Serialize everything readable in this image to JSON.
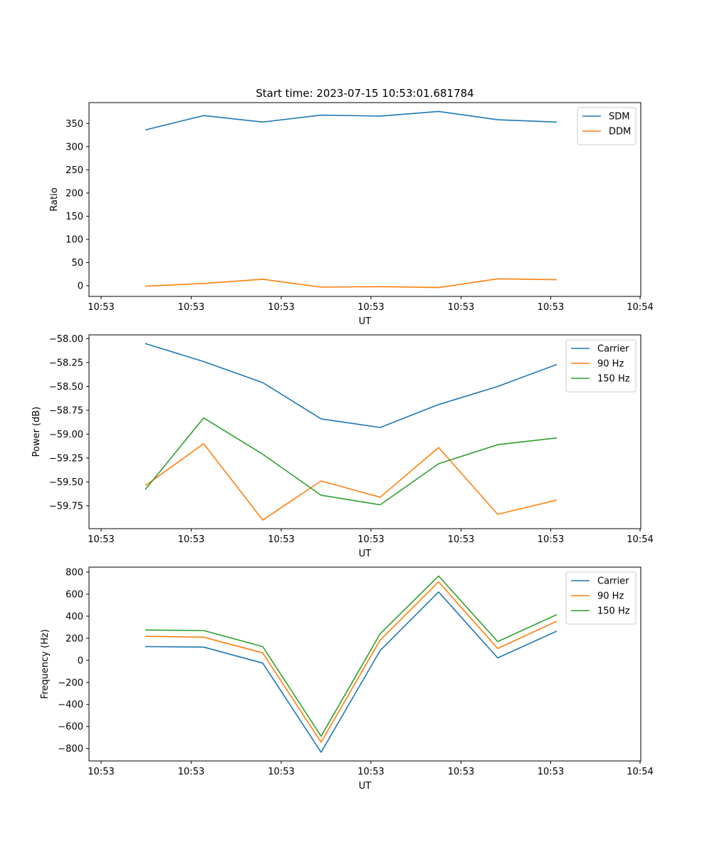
{
  "chart_data": [
    {
      "type": "line",
      "title": "Start time: 2023-07-15 10:53:01.681784",
      "xlabel": "UT",
      "ylabel": "Ratio",
      "x_tick_labels": [
        "10:53",
        "10:53",
        "10:53",
        "10:53",
        "10:53",
        "10:53",
        "10:54"
      ],
      "ylim": [
        -23,
        395
      ],
      "y_ticks": [
        0,
        50,
        100,
        150,
        200,
        250,
        300,
        350
      ],
      "legend_position": "top-right",
      "series": [
        {
          "name": "SDM",
          "color": "#1f77b4",
          "values": [
            336,
            367,
            353,
            368,
            366,
            376,
            358,
            353
          ]
        },
        {
          "name": "DDM",
          "color": "#ff7f0e",
          "values": [
            -1,
            5,
            14,
            -3,
            -2,
            -4,
            15,
            13
          ]
        }
      ]
    },
    {
      "type": "line",
      "title": "",
      "xlabel": "UT",
      "ylabel": "Power (dB)",
      "x_tick_labels": [
        "10:53",
        "10:53",
        "10:53",
        "10:53",
        "10:53",
        "10:53",
        "10:54"
      ],
      "ylim": [
        -59.99,
        -57.96
      ],
      "y_ticks": [
        -58.0,
        -58.25,
        -58.5,
        -58.75,
        -59.0,
        -59.25,
        -59.5,
        -59.75
      ],
      "legend_position": "top-right",
      "series": [
        {
          "name": "Carrier",
          "color": "#1f77b4",
          "values": [
            -58.05,
            -58.24,
            -58.46,
            -58.84,
            -58.93,
            -58.69,
            -58.5,
            -58.27
          ]
        },
        {
          "name": "90 Hz",
          "color": "#ff7f0e",
          "values": [
            -59.54,
            -59.1,
            -59.9,
            -59.49,
            -59.66,
            -59.14,
            -59.84,
            -59.69
          ]
        },
        {
          "name": "150 Hz",
          "color": "#2ca02c",
          "values": [
            -59.58,
            -58.83,
            -59.21,
            -59.64,
            -59.74,
            -59.31,
            -59.11,
            -59.04
          ]
        }
      ]
    },
    {
      "type": "line",
      "title": "",
      "xlabel": "UT",
      "ylabel": "Frequency (Hz)",
      "x_tick_labels": [
        "10:53",
        "10:53",
        "10:53",
        "10:53",
        "10:53",
        "10:53",
        "10:54"
      ],
      "ylim": [
        -912,
        845
      ],
      "y_ticks": [
        800,
        600,
        400,
        200,
        0,
        -200,
        -400,
        -600,
        -800
      ],
      "legend_position": "top-right",
      "series": [
        {
          "name": "Carrier",
          "color": "#1f77b4",
          "values": [
            125,
            120,
            -25,
            -833,
            90,
            620,
            22,
            265
          ]
        },
        {
          "name": "90 Hz",
          "color": "#ff7f0e",
          "values": [
            218,
            210,
            68,
            -742,
            185,
            712,
            108,
            355
          ]
        },
        {
          "name": "150 Hz",
          "color": "#2ca02c",
          "values": [
            275,
            270,
            125,
            -688,
            242,
            765,
            170,
            415
          ]
        }
      ]
    }
  ]
}
